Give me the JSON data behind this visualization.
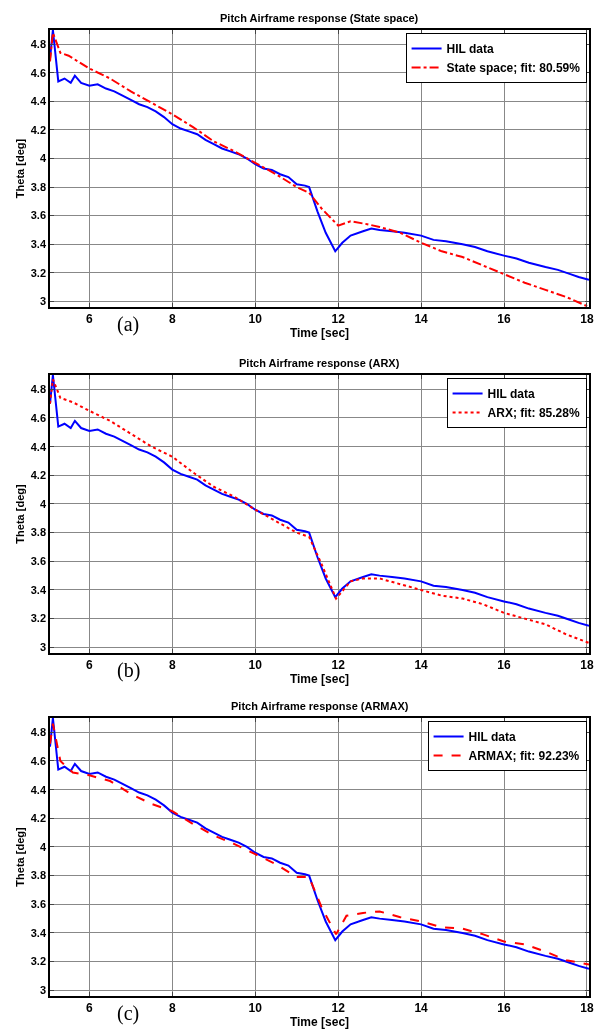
{
  "chart_data": [
    {
      "type": "line",
      "title": "Pitch Airframe response (State space)",
      "xlabel": "Time [sec]",
      "ylabel": "Theta [deg]",
      "annotations": [
        "(a)"
      ],
      "xlim": [
        5.05,
        18.05
      ],
      "ylim": [
        2.96,
        4.9
      ],
      "xticks": [
        6,
        8,
        10,
        12,
        14,
        16,
        18
      ],
      "yticks": [
        3,
        3.2,
        3.4,
        3.6,
        3.8,
        4,
        4.2,
        4.4,
        4.6,
        4.8
      ],
      "grid": true,
      "legend": "top right",
      "series": [
        {
          "name": "HIL data",
          "color": "#0000ff",
          "line_style": "solid",
          "x": [
            5.05,
            5.12,
            5.25,
            5.4,
            5.55,
            5.65,
            5.8,
            6.0,
            6.2,
            6.4,
            6.6,
            6.8,
            7.0,
            7.2,
            7.4,
            7.6,
            7.8,
            8.0,
            8.2,
            8.4,
            8.6,
            8.8,
            9.0,
            9.2,
            9.4,
            9.6,
            9.8,
            10.0,
            10.2,
            10.4,
            10.6,
            10.8,
            11.0,
            11.2,
            11.3,
            11.5,
            11.7,
            11.93,
            12.1,
            12.3,
            12.6,
            12.8,
            13.0,
            13.3,
            13.6,
            14.0,
            14.3,
            14.6,
            15.0,
            15.3,
            15.6,
            16.0,
            16.3,
            16.6,
            17.0,
            17.3,
            17.6,
            17.8,
            18.05
          ],
          "values": [
            4.7,
            4.9,
            4.54,
            4.56,
            4.53,
            4.58,
            4.53,
            4.51,
            4.52,
            4.49,
            4.47,
            4.44,
            4.41,
            4.38,
            4.36,
            4.33,
            4.29,
            4.24,
            4.21,
            4.19,
            4.17,
            4.13,
            4.1,
            4.07,
            4.05,
            4.03,
            4.0,
            3.96,
            3.93,
            3.92,
            3.89,
            3.87,
            3.82,
            3.81,
            3.8,
            3.63,
            3.48,
            3.35,
            3.41,
            3.46,
            3.49,
            3.51,
            3.5,
            3.49,
            3.48,
            3.46,
            3.43,
            3.42,
            3.4,
            3.38,
            3.35,
            3.32,
            3.3,
            3.27,
            3.24,
            3.22,
            3.19,
            3.17,
            3.15
          ]
        },
        {
          "name": "State space; fit: 80.59%",
          "color": "#ff0000",
          "line_style": "dashdot",
          "x": [
            5.05,
            5.12,
            5.3,
            5.5,
            6.0,
            6.5,
            7.0,
            7.5,
            8.0,
            8.5,
            9.0,
            9.5,
            10.0,
            10.5,
            11.0,
            11.3,
            11.6,
            12.0,
            12.3,
            12.7,
            13.0,
            13.5,
            14.0,
            14.5,
            15.0,
            15.5,
            16.0,
            16.5,
            17.0,
            17.5,
            18.05
          ],
          "values": [
            4.68,
            4.88,
            4.74,
            4.72,
            4.63,
            4.56,
            4.47,
            4.39,
            4.31,
            4.22,
            4.12,
            4.05,
            3.97,
            3.89,
            3.8,
            3.76,
            3.65,
            3.53,
            3.56,
            3.54,
            3.52,
            3.48,
            3.41,
            3.35,
            3.31,
            3.25,
            3.19,
            3.13,
            3.08,
            3.03,
            2.96
          ]
        }
      ]
    },
    {
      "type": "line",
      "title": "Pitch Airframe response (ARX)",
      "xlabel": "Time [sec]",
      "ylabel": "Theta [deg]",
      "annotations": [
        "(b)"
      ],
      "xlim": [
        5.05,
        18.05
      ],
      "ylim": [
        2.96,
        4.9
      ],
      "xticks": [
        6,
        8,
        10,
        12,
        14,
        16,
        18
      ],
      "yticks": [
        3,
        3.2,
        3.4,
        3.6,
        3.8,
        4,
        4.2,
        4.4,
        4.6,
        4.8
      ],
      "grid": true,
      "legend": "top right",
      "series": [
        {
          "name": "HIL data",
          "color": "#0000ff",
          "line_style": "solid",
          "x": [
            5.05,
            5.12,
            5.25,
            5.4,
            5.55,
            5.65,
            5.8,
            6.0,
            6.2,
            6.4,
            6.6,
            6.8,
            7.0,
            7.2,
            7.4,
            7.6,
            7.8,
            8.0,
            8.2,
            8.4,
            8.6,
            8.8,
            9.0,
            9.2,
            9.4,
            9.6,
            9.8,
            10.0,
            10.2,
            10.4,
            10.6,
            10.8,
            11.0,
            11.2,
            11.3,
            11.5,
            11.7,
            11.93,
            12.1,
            12.3,
            12.6,
            12.8,
            13.0,
            13.3,
            13.6,
            14.0,
            14.3,
            14.6,
            15.0,
            15.3,
            15.6,
            16.0,
            16.3,
            16.6,
            17.0,
            17.3,
            17.6,
            17.8,
            18.05
          ],
          "values": [
            4.7,
            4.9,
            4.54,
            4.56,
            4.53,
            4.58,
            4.53,
            4.51,
            4.52,
            4.49,
            4.47,
            4.44,
            4.41,
            4.38,
            4.36,
            4.33,
            4.29,
            4.24,
            4.21,
            4.19,
            4.17,
            4.13,
            4.1,
            4.07,
            4.05,
            4.03,
            4.0,
            3.96,
            3.93,
            3.92,
            3.89,
            3.87,
            3.82,
            3.81,
            3.8,
            3.63,
            3.48,
            3.35,
            3.41,
            3.46,
            3.49,
            3.51,
            3.5,
            3.49,
            3.48,
            3.46,
            3.43,
            3.42,
            3.4,
            3.38,
            3.35,
            3.32,
            3.3,
            3.27,
            3.24,
            3.22,
            3.19,
            3.17,
            3.15
          ]
        },
        {
          "name": "ARX; fit: 85.28%",
          "color": "#ff0000",
          "line_style": "dotted",
          "x": [
            5.05,
            5.12,
            5.3,
            5.6,
            6.0,
            6.5,
            7.0,
            7.5,
            8.0,
            8.5,
            9.0,
            9.5,
            10.0,
            10.5,
            11.0,
            11.3,
            11.6,
            11.95,
            12.3,
            12.6,
            13.0,
            13.5,
            14.0,
            14.5,
            15.0,
            15.5,
            16.0,
            16.5,
            17.0,
            17.5,
            18.05
          ],
          "values": [
            4.7,
            4.87,
            4.74,
            4.71,
            4.65,
            4.58,
            4.49,
            4.4,
            4.33,
            4.22,
            4.12,
            4.05,
            3.96,
            3.88,
            3.8,
            3.77,
            3.58,
            3.34,
            3.46,
            3.48,
            3.48,
            3.44,
            3.4,
            3.36,
            3.34,
            3.3,
            3.24,
            3.2,
            3.16,
            3.09,
            3.03
          ]
        }
      ]
    },
    {
      "type": "line",
      "title": "Pitch Airframe response (ARMAX)",
      "xlabel": "Time [sec]",
      "ylabel": "Theta [deg]",
      "annotations": [
        "(c)"
      ],
      "xlim": [
        5.05,
        18.05
      ],
      "ylim": [
        2.96,
        4.9
      ],
      "xticks": [
        6,
        8,
        10,
        12,
        14,
        16,
        18
      ],
      "yticks": [
        3,
        3.2,
        3.4,
        3.6,
        3.8,
        4,
        4.2,
        4.4,
        4.6,
        4.8
      ],
      "grid": true,
      "legend": "top right",
      "series": [
        {
          "name": "HIL data",
          "color": "#0000ff",
          "line_style": "solid",
          "x": [
            5.05,
            5.12,
            5.25,
            5.4,
            5.55,
            5.65,
            5.8,
            6.0,
            6.2,
            6.4,
            6.6,
            6.8,
            7.0,
            7.2,
            7.4,
            7.6,
            7.8,
            8.0,
            8.2,
            8.4,
            8.6,
            8.8,
            9.0,
            9.2,
            9.4,
            9.6,
            9.8,
            10.0,
            10.2,
            10.4,
            10.6,
            10.8,
            11.0,
            11.2,
            11.3,
            11.5,
            11.7,
            11.93,
            12.1,
            12.3,
            12.6,
            12.8,
            13.0,
            13.3,
            13.6,
            14.0,
            14.3,
            14.6,
            15.0,
            15.3,
            15.6,
            16.0,
            16.3,
            16.6,
            17.0,
            17.3,
            17.6,
            17.8,
            18.05
          ],
          "values": [
            4.7,
            4.9,
            4.54,
            4.56,
            4.53,
            4.58,
            4.53,
            4.51,
            4.52,
            4.49,
            4.47,
            4.44,
            4.41,
            4.38,
            4.36,
            4.33,
            4.29,
            4.24,
            4.21,
            4.19,
            4.17,
            4.13,
            4.1,
            4.07,
            4.05,
            4.03,
            4.0,
            3.96,
            3.93,
            3.92,
            3.89,
            3.87,
            3.82,
            3.81,
            3.8,
            3.63,
            3.48,
            3.35,
            3.41,
            3.46,
            3.49,
            3.51,
            3.5,
            3.49,
            3.48,
            3.46,
            3.43,
            3.42,
            3.4,
            3.38,
            3.35,
            3.32,
            3.3,
            3.27,
            3.24,
            3.22,
            3.19,
            3.17,
            3.15
          ]
        },
        {
          "name": "ARMAX; fit: 92.23%",
          "color": "#ff0000",
          "line_style": "dashed",
          "x": [
            5.05,
            5.12,
            5.3,
            5.6,
            6.0,
            6.5,
            7.0,
            7.5,
            8.0,
            8.5,
            9.0,
            9.5,
            10.0,
            10.5,
            11.0,
            11.3,
            11.6,
            11.95,
            12.2,
            12.6,
            13.0,
            13.5,
            14.0,
            14.5,
            15.0,
            15.5,
            16.0,
            16.5,
            17.0,
            17.5,
            18.05
          ],
          "values": [
            4.72,
            4.86,
            4.6,
            4.52,
            4.5,
            4.46,
            4.37,
            4.3,
            4.25,
            4.16,
            4.08,
            4.02,
            3.95,
            3.88,
            3.79,
            3.79,
            3.58,
            3.39,
            3.52,
            3.54,
            3.55,
            3.51,
            3.48,
            3.44,
            3.43,
            3.39,
            3.34,
            3.32,
            3.27,
            3.21,
            3.18
          ]
        }
      ]
    }
  ]
}
